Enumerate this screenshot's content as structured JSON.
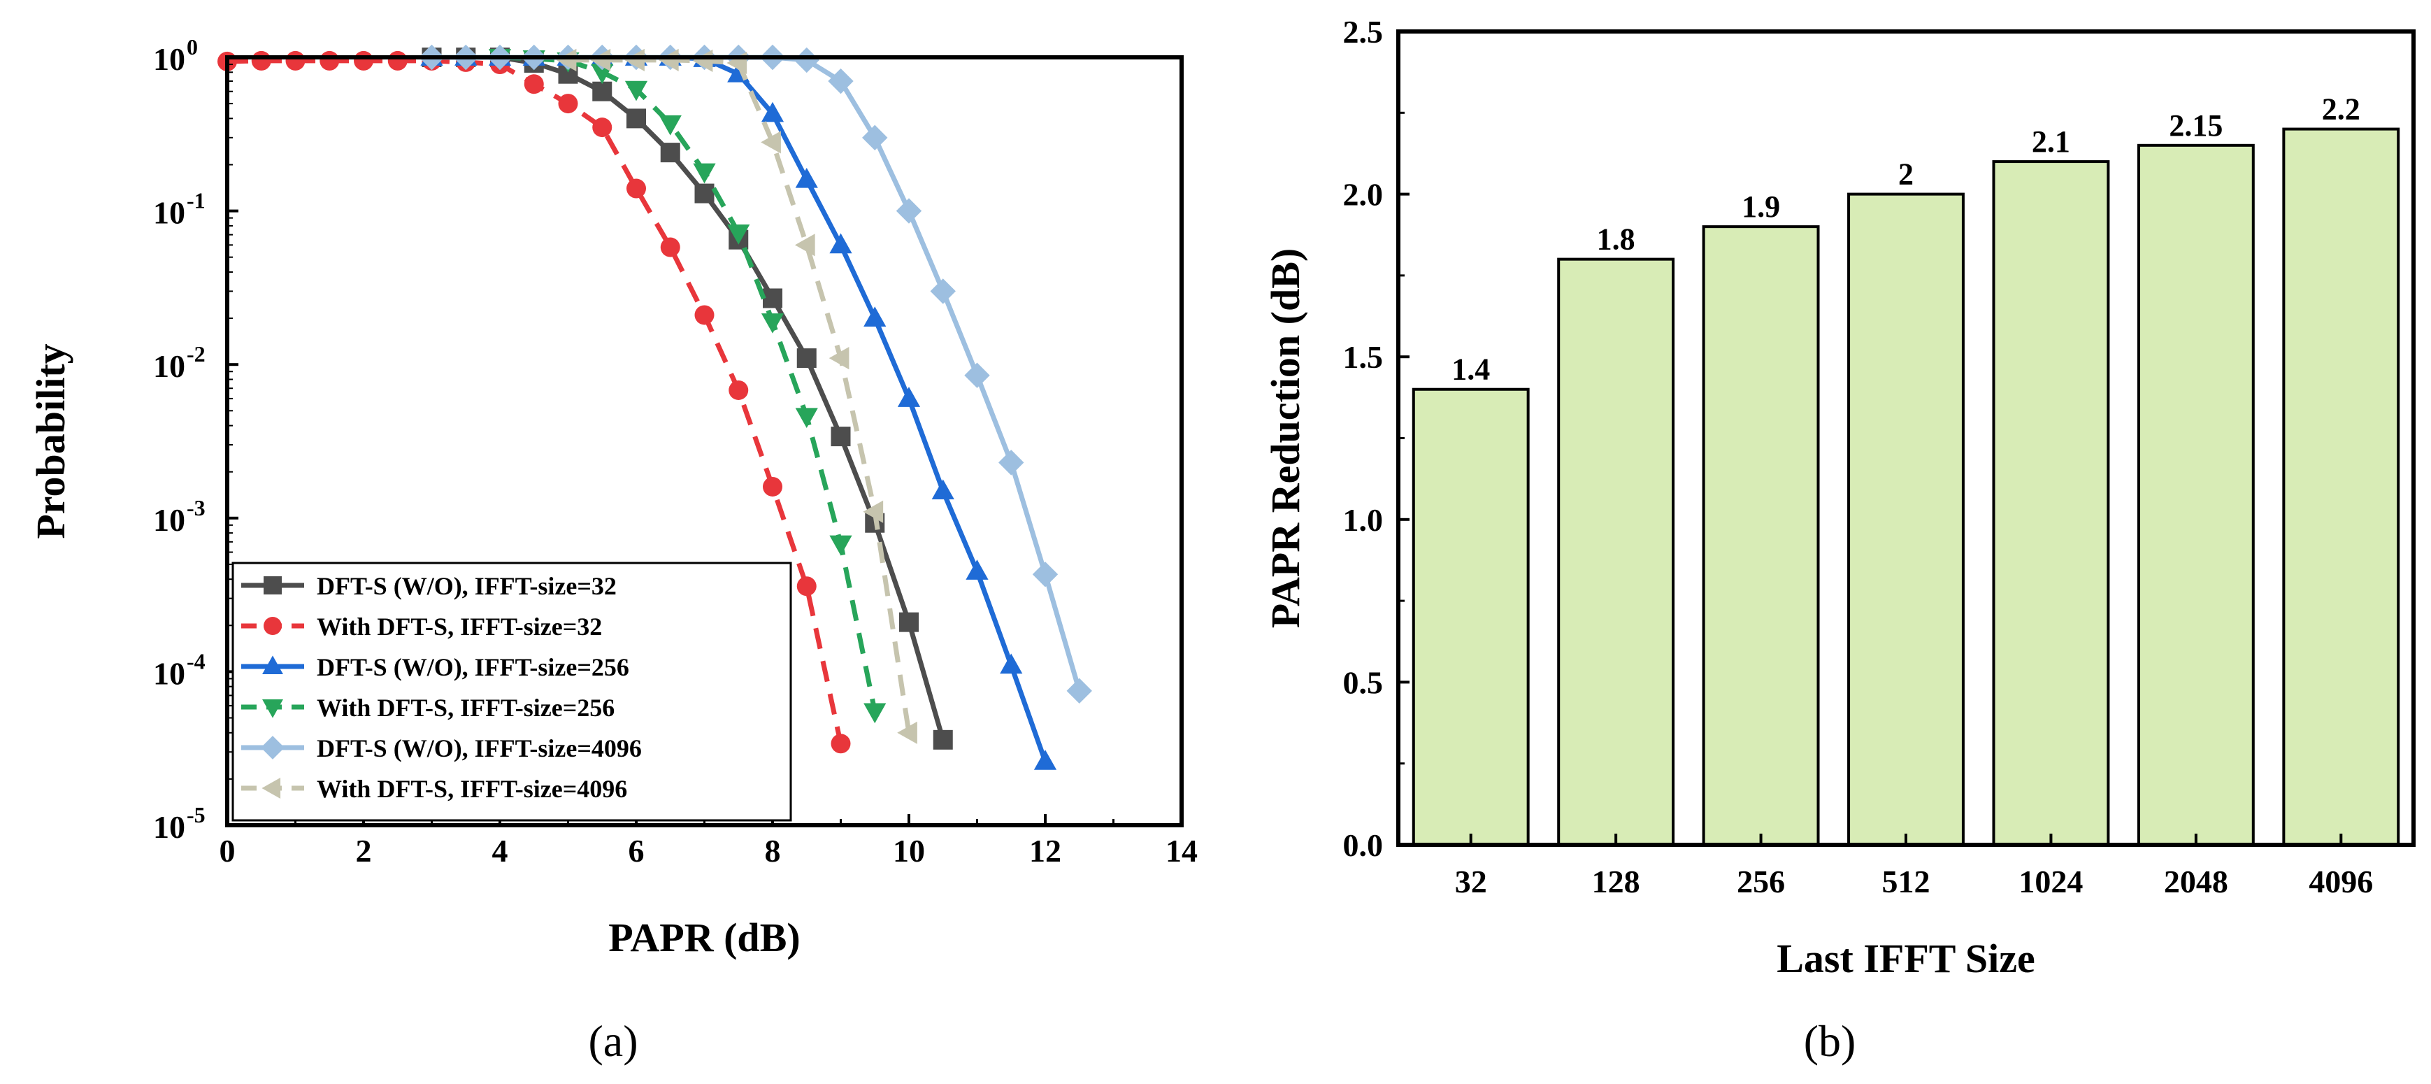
{
  "colors": {
    "series_32_wo": "#4d4d4d",
    "series_32_with": "#e8363b",
    "series_256_wo": "#1f6bd6",
    "series_256_with": "#27a55a",
    "series_4096_wo": "#9dbfe0",
    "series_4096_with": "#c6c4ae",
    "bar_fill": "#d8ecb6",
    "bar_stroke": "#000000"
  },
  "captions": {
    "a": "(a)",
    "b": "(b)"
  },
  "chart_data": [
    {
      "type": "line",
      "panel": "a",
      "title": "",
      "xlabel": "PAPR (dB)",
      "ylabel": "Probability",
      "xlim": [
        0,
        14
      ],
      "ylim_log10": [
        -5,
        0
      ],
      "yscale": "log",
      "xticks": [
        0,
        2,
        4,
        6,
        8,
        10,
        12,
        14
      ],
      "xtick_labels": [
        "0",
        "2",
        "4",
        "6",
        "8",
        "10",
        "12",
        "14"
      ],
      "ytick_exponents": [
        0,
        -1,
        -2,
        -3,
        -4,
        -5
      ],
      "ytick_base": "10",
      "ytick_sup": [
        "0",
        "-1",
        "-2",
        "-3",
        "-4",
        "-5"
      ],
      "legend_position": "bottom-left",
      "series": [
        {
          "name": "DFT-S (W/O), IFFT-size=32",
          "color_key": "series_32_wo",
          "marker": "square",
          "dash": "solid",
          "x": [
            3.0,
            3.5,
            4.0,
            4.5,
            5.0,
            5.5,
            6.0,
            6.5,
            7.0,
            7.5,
            8.0,
            8.5,
            9.0,
            9.5,
            10.0,
            10.5
          ],
          "y": [
            1,
            1,
            1,
            0.92,
            0.78,
            0.6,
            0.4,
            0.24,
            0.13,
            0.065,
            0.027,
            0.011,
            0.0034,
            0.00093,
            0.00021,
            3.6e-05
          ]
        },
        {
          "name": "With DFT-S, IFFT-size=32",
          "color_key": "series_32_with",
          "marker": "circle",
          "dash": "dashed",
          "x": [
            0,
            0.5,
            1.0,
            1.5,
            2.0,
            2.5,
            3.0,
            3.5,
            4.0,
            4.5,
            5.0,
            5.5,
            6.0,
            6.5,
            7.0,
            7.5,
            8.0,
            8.5,
            9.0
          ],
          "y": [
            0.94,
            0.95,
            0.95,
            0.95,
            0.95,
            0.95,
            0.95,
            0.93,
            0.9,
            0.67,
            0.5,
            0.35,
            0.14,
            0.058,
            0.021,
            0.0068,
            0.0016,
            0.00036,
            3.4e-05
          ]
        },
        {
          "name": "DFT-S (W/O), IFFT-size=256",
          "color_key": "series_256_wo",
          "marker": "triangle-up",
          "dash": "solid",
          "x": [
            3.0,
            3.5,
            4.0,
            4.5,
            5.0,
            5.5,
            6.0,
            6.5,
            7.0,
            7.5,
            8.0,
            8.5,
            9.0,
            9.5,
            10.0,
            10.5,
            11.0,
            11.5,
            12.0
          ],
          "y": [
            1,
            1,
            1,
            1,
            1,
            1,
            1,
            1,
            0.98,
            0.78,
            0.43,
            0.16,
            0.06,
            0.02,
            0.006,
            0.0015,
            0.00045,
            0.00011,
            2.6e-05
          ]
        },
        {
          "name": "With DFT-S, IFFT-size=256",
          "color_key": "series_256_with",
          "marker": "triangle-down",
          "dash": "dashed",
          "x": [
            4.0,
            4.5,
            5.0,
            5.5,
            6.0,
            6.5,
            7.0,
            7.5,
            8.0,
            8.5,
            9.0,
            9.5
          ],
          "y": [
            1,
            0.98,
            0.95,
            0.8,
            0.62,
            0.37,
            0.18,
            0.072,
            0.019,
            0.0046,
            0.00068,
            5.5e-05
          ]
        },
        {
          "name": "DFT-S (W/O), IFFT-size=4096",
          "color_key": "series_4096_wo",
          "marker": "diamond",
          "dash": "solid",
          "x": [
            3.0,
            3.5,
            4.0,
            4.5,
            5.0,
            5.5,
            6.0,
            6.5,
            7.0,
            7.5,
            8.0,
            8.5,
            9.0,
            9.5,
            10.0,
            10.5,
            11.0,
            11.5,
            12.0,
            12.5
          ],
          "y": [
            1,
            1,
            1,
            1,
            1,
            1,
            1,
            1,
            1,
            1,
            1,
            0.96,
            0.7,
            0.3,
            0.1,
            0.03,
            0.0085,
            0.0023,
            0.00043,
            7.5e-05
          ]
        },
        {
          "name": "With DFT-S, IFFT-size=4096",
          "color_key": "series_4096_with",
          "marker": "triangle-left",
          "dash": "dashed",
          "x": [
            5.0,
            5.5,
            6.0,
            6.5,
            7.0,
            7.5,
            8.0,
            8.5,
            9.0,
            9.5,
            10.0
          ],
          "y": [
            0.96,
            0.96,
            0.96,
            0.96,
            0.95,
            0.92,
            0.28,
            0.06,
            0.011,
            0.0011,
            4e-05
          ]
        }
      ]
    },
    {
      "type": "bar",
      "panel": "b",
      "title": "",
      "xlabel": "Last IFFT Size",
      "ylabel": "PAPR Reduction (dB)",
      "categories": [
        "32",
        "128",
        "256",
        "512",
        "1024",
        "2048",
        "4096"
      ],
      "values": [
        1.4,
        1.8,
        1.9,
        2.0,
        2.1,
        2.15,
        2.2
      ],
      "value_labels": [
        "1.4",
        "1.8",
        "1.9",
        "2",
        "2.1",
        "2.15",
        "2.2"
      ],
      "ylim": [
        0,
        2.5
      ],
      "yticks": [
        0,
        0.5,
        1.0,
        1.5,
        2.0,
        2.5
      ],
      "ytick_labels": [
        "0.0",
        "0.5",
        "1.0",
        "1.5",
        "2.0",
        "2.5"
      ]
    }
  ]
}
